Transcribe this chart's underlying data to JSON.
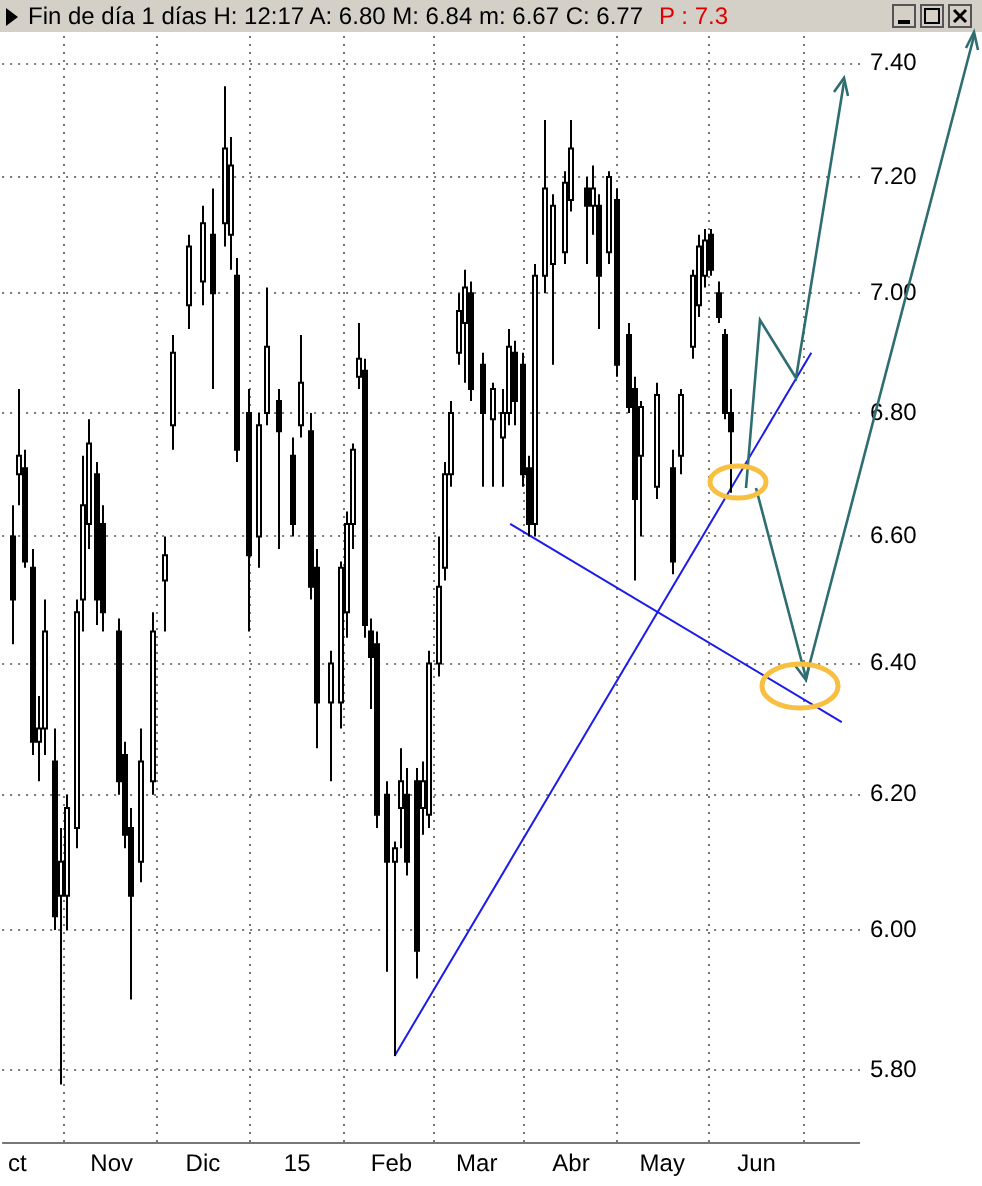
{
  "chart_data": {
    "type": "candlestick",
    "title": "Fin de día 1 días H: 12:17 A: 6.80 M: 6.84 m: 6.67 C: 6.77",
    "annotations": [
      "P : 7.3"
    ],
    "color": "#000000",
    "colors": [
      "#000000",
      "#ffffff",
      "#000000",
      "#000000",
      "#ffffff",
      "#ffffff",
      "#000000",
      "#ffffff",
      "#ffffff",
      "#ffffff",
      "#ffffff",
      "#ffffff",
      "#000000",
      "#000000",
      "#000000",
      "#000000",
      "#000000",
      "#ffffff",
      "#ffffff",
      "#ffffff",
      "#ffffff",
      "#ffffff",
      "#ffffff",
      "#000000",
      "#ffffff",
      "#ffffff",
      "#000000",
      "#000000",
      "#ffffff",
      "#ffffff",
      "#000000",
      "#000000",
      "#ffffff",
      "#000000",
      "#000000",
      "#ffffff",
      "#ffffff",
      "#ffffff",
      "#ffffff",
      "#ffffff",
      "#000000",
      "#000000",
      "#000000",
      "#000000",
      "#ffffff",
      "#ffffff",
      "#000000",
      "#000000",
      "#ffffff",
      "#ffffff",
      "#ffffff",
      "#ffffff",
      "#ffffff",
      "#ffffff",
      "#ffffff",
      "#000000",
      "#000000",
      "#ffffff",
      "#ffffff",
      "#ffffff",
      "#000000",
      "#000000",
      "#000000",
      "#ffffff",
      "#ffffff",
      "#ffffff",
      "#ffffff",
      "#ffffff",
      "#000000",
      "#ffffff",
      "#000000",
      "#ffffff",
      "#000000",
      "#000000",
      "#000000",
      "#ffffff",
      "#ffffff",
      "#000000",
      "#ffffff",
      "#ffffff",
      "#ffffff",
      "#ffffff",
      "#000000",
      "#000000",
      "#000000",
      "#000000"
    ],
    "x": [
      "2014-09-29",
      "2014-10-01",
      "2014-10-03",
      "2014-10-06",
      "2014-10-08",
      "2014-10-10",
      "2014-10-13",
      "2014-10-15",
      "2014-10-17",
      "2014-10-20",
      "2014-10-22",
      "2014-10-24",
      "2014-10-27",
      "2014-10-29",
      "2014-11-03",
      "2014-11-05",
      "2014-11-07",
      "2014-11-10",
      "2014-11-14",
      "2014-11-18",
      "2014-11-21",
      "2014-11-26",
      "2014-12-01",
      "2014-12-04",
      "2014-12-08",
      "2014-12-10",
      "2014-12-12",
      "2014-12-16",
      "2014-12-19",
      "2014-12-22",
      "2014-12-26",
      "2014-12-30",
      "2015-01-02",
      "2015-01-05",
      "2015-01-07",
      "2015-01-12",
      "2015-01-15",
      "2015-01-17",
      "2015-01-19",
      "2015-01-21",
      "2015-01-23",
      "2015-01-25",
      "2015-01-27",
      "2015-01-30",
      "2015-02-02",
      "2015-02-04",
      "2015-02-06",
      "2015-02-09",
      "2015-02-11",
      "2015-02-13",
      "2015-02-16",
      "2015-02-18",
      "2015-02-20",
      "2015-02-23",
      "2015-02-25",
      "2015-02-27",
      "2015-03-03",
      "2015-03-06",
      "2015-03-09",
      "2015-03-11",
      "2015-03-13",
      "2015-03-16",
      "2015-03-18",
      "2015-03-20",
      "2015-03-23",
      "2015-03-26",
      "2015-03-30",
      "2015-04-01",
      "2015-04-06",
      "2015-04-08",
      "2015-04-10",
      "2015-04-13",
      "2015-04-16",
      "2015-04-20",
      "2015-04-22",
      "2015-04-24",
      "2015-04-29",
      "2015-05-04",
      "2015-05-07",
      "2015-05-11",
      "2015-05-13",
      "2015-05-15",
      "2015-05-17",
      "2015-05-19",
      "2015-05-21",
      "2015-05-23"
    ],
    "ohlc": [
      [
        6.6,
        6.65,
        6.43,
        6.5
      ],
      [
        6.7,
        6.84,
        6.65,
        6.73
      ],
      [
        6.71,
        6.74,
        6.55,
        6.56
      ],
      [
        6.55,
        6.58,
        6.26,
        6.28
      ],
      [
        6.28,
        6.35,
        6.22,
        6.3
      ],
      [
        6.3,
        6.5,
        6.26,
        6.45
      ],
      [
        6.25,
        6.3,
        6.0,
        6.02
      ],
      [
        6.05,
        6.15,
        5.78,
        6.1
      ],
      [
        6.05,
        6.2,
        6.0,
        6.18
      ],
      [
        6.15,
        6.5,
        6.12,
        6.48
      ],
      [
        6.5,
        6.73,
        6.45,
        6.65
      ],
      [
        6.62,
        6.79,
        6.58,
        6.75
      ],
      [
        6.7,
        6.72,
        6.46,
        6.5
      ],
      [
        6.62,
        6.65,
        6.45,
        6.48
      ],
      [
        6.45,
        6.47,
        6.2,
        6.22
      ],
      [
        6.26,
        6.28,
        6.12,
        6.14
      ],
      [
        6.15,
        6.18,
        5.9,
        6.05
      ],
      [
        6.1,
        6.3,
        6.07,
        6.25
      ],
      [
        6.22,
        6.48,
        6.2,
        6.45
      ],
      [
        6.53,
        6.6,
        6.45,
        6.57
      ],
      [
        6.78,
        6.93,
        6.74,
        6.9
      ],
      [
        6.98,
        7.1,
        6.94,
        7.08
      ],
      [
        7.02,
        7.15,
        6.98,
        7.12
      ],
      [
        7.1,
        7.18,
        6.84,
        7.0
      ],
      [
        7.12,
        7.36,
        7.08,
        7.25
      ],
      [
        7.1,
        7.27,
        7.04,
        7.22
      ],
      [
        7.03,
        7.06,
        6.72,
        6.74
      ],
      [
        6.8,
        6.84,
        6.45,
        6.57
      ],
      [
        6.6,
        6.8,
        6.55,
        6.78
      ],
      [
        6.8,
        7.01,
        6.78,
        6.91
      ],
      [
        6.82,
        6.84,
        6.58,
        6.77
      ],
      [
        6.73,
        6.76,
        6.6,
        6.62
      ],
      [
        6.78,
        6.93,
        6.76,
        6.85
      ],
      [
        6.77,
        6.8,
        6.5,
        6.52
      ],
      [
        6.55,
        6.58,
        6.27,
        6.34
      ],
      [
        6.34,
        6.42,
        6.22,
        6.4
      ],
      [
        6.34,
        6.56,
        6.3,
        6.55
      ],
      [
        6.48,
        6.64,
        6.44,
        6.62
      ],
      [
        6.62,
        6.75,
        6.58,
        6.74
      ],
      [
        6.86,
        6.95,
        6.84,
        6.89
      ],
      [
        6.87,
        6.89,
        6.44,
        6.46
      ],
      [
        6.45,
        6.47,
        6.33,
        6.41
      ],
      [
        6.43,
        6.45,
        6.15,
        6.17
      ],
      [
        6.2,
        6.22,
        5.94,
        6.1
      ],
      [
        6.1,
        6.13,
        5.82,
        6.12
      ],
      [
        6.18,
        6.27,
        6.12,
        6.22
      ],
      [
        6.2,
        6.24,
        6.08,
        6.1
      ],
      [
        6.22,
        6.24,
        5.93,
        5.97
      ],
      [
        6.18,
        6.25,
        6.14,
        6.22
      ],
      [
        6.17,
        6.42,
        6.15,
        6.4
      ],
      [
        6.4,
        6.6,
        6.38,
        6.52
      ],
      [
        6.55,
        6.72,
        6.53,
        6.7
      ],
      [
        6.7,
        6.82,
        6.68,
        6.8
      ],
      [
        6.9,
        7.0,
        6.88,
        6.97
      ],
      [
        6.95,
        7.04,
        6.85,
        7.01
      ],
      [
        7.0,
        7.02,
        6.82,
        6.84
      ],
      [
        6.88,
        6.9,
        6.68,
        6.8
      ],
      [
        6.79,
        6.85,
        6.68,
        6.84
      ],
      [
        6.76,
        6.84,
        6.68,
        6.8
      ],
      [
        6.8,
        6.94,
        6.78,
        6.91
      ],
      [
        6.9,
        6.92,
        6.78,
        6.82
      ],
      [
        6.88,
        6.9,
        6.68,
        6.7
      ],
      [
        6.71,
        6.73,
        6.6,
        6.62
      ],
      [
        6.62,
        7.05,
        6.6,
        7.03
      ],
      [
        7.03,
        7.3,
        7.0,
        7.18
      ],
      [
        7.05,
        7.17,
        6.88,
        7.15
      ],
      [
        7.07,
        7.21,
        7.05,
        7.19
      ],
      [
        7.16,
        7.3,
        7.14,
        7.25
      ],
      [
        7.18,
        7.2,
        7.05,
        7.15
      ],
      [
        7.15,
        7.22,
        7.1,
        7.18
      ],
      [
        7.15,
        7.17,
        6.94,
        7.03
      ],
      [
        7.07,
        7.21,
        7.05,
        7.2
      ],
      [
        7.16,
        7.18,
        6.86,
        6.88
      ],
      [
        6.93,
        6.95,
        6.8,
        6.81
      ],
      [
        6.84,
        6.86,
        6.53,
        6.66
      ],
      [
        6.73,
        6.82,
        6.6,
        6.81
      ],
      [
        6.68,
        6.85,
        6.66,
        6.83
      ],
      [
        6.71,
        6.74,
        6.54,
        6.56
      ],
      [
        6.73,
        6.84,
        6.7,
        6.83
      ],
      [
        6.91,
        7.04,
        6.89,
        7.03
      ],
      [
        6.98,
        7.1,
        6.96,
        7.08
      ],
      [
        7.03,
        7.11,
        7.01,
        7.09
      ],
      [
        7.1,
        7.11,
        7.03,
        7.04
      ],
      [
        7.0,
        7.02,
        6.95,
        6.96
      ],
      [
        6.93,
        6.94,
        6.79,
        6.8
      ],
      [
        6.8,
        6.84,
        6.67,
        6.77
      ]
    ],
    "series": [
      {
        "type": "line",
        "color": "#1c1ce8",
        "x": [
          "2015-02-02",
          "2015-06-19"
        ],
        "values": [
          5.82,
          6.9
        ]
      },
      {
        "type": "line",
        "color": "#1c1ce8",
        "x": [
          "2015-03-12",
          "2015-06-29"
        ],
        "values": [
          6.62,
          6.31
        ]
      }
    ],
    "xlim": [
      "2014-09-26",
      "2015-07-05"
    ],
    "xticks": [
      {
        "value": "2014-10-01",
        "label": "ct"
      },
      {
        "value": "2014-11-01",
        "label": "Nov"
      },
      {
        "value": "2014-12-01",
        "label": "Dic"
      },
      {
        "value": "2015-01-01",
        "label": "15"
      },
      {
        "value": "2015-02-01",
        "label": "Feb"
      },
      {
        "value": "2015-03-01",
        "label": "Mar"
      },
      {
        "value": "2015-04-01",
        "label": "Abr"
      },
      {
        "value": "2015-05-01",
        "label": "May"
      },
      {
        "value": "2015-06-01",
        "label": "Jun"
      }
    ],
    "ylim": [
      5.7,
      7.45
    ],
    "yticks": [
      {
        "value": 5.8,
        "label": "5.80"
      },
      {
        "value": 6,
        "label": "6.00"
      },
      {
        "value": 6.2,
        "label": "6.20"
      },
      {
        "value": 6.4,
        "label": "6.40"
      },
      {
        "value": 6.6,
        "label": "6.60"
      },
      {
        "value": 6.8,
        "label": "6.80"
      },
      {
        "value": 7,
        "label": "7.00"
      },
      {
        "value": 7.2,
        "label": "7.20"
      },
      {
        "value": 7.4,
        "label": "7.40"
      }
    ],
    "log": true,
    "grid": true
  }
}
